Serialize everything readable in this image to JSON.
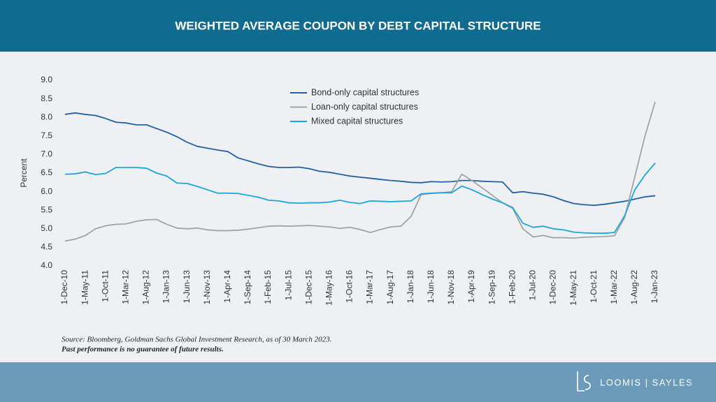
{
  "header": {
    "title": "WEIGHTED AVERAGE COUPON BY DEBT CAPITAL STRUCTURE"
  },
  "chart_data": {
    "type": "line",
    "y_label": "Percent",
    "categories": [
      "1-Dec-10",
      null,
      "1-May-11",
      null,
      "1-Oct-11",
      null,
      "1-Mar-12",
      null,
      "1-Aug-12",
      null,
      "1-Jan-13",
      null,
      "1-Jun-13",
      null,
      "1-Nov-13",
      null,
      "1-Apr-14",
      null,
      "1-Sep-14",
      null,
      "1-Feb-15",
      null,
      "1-Jul-15",
      null,
      "1-Dec-15",
      null,
      "1-May-16",
      null,
      "1-Oct-16",
      null,
      "1-Mar-17",
      null,
      "1-Aug-17",
      null,
      "1-Jan-18",
      null,
      "1-Jun-18",
      null,
      "1-Nov-18",
      null,
      "1-Apr-19",
      null,
      "1-Sep-19",
      null,
      "1-Feb-20",
      null,
      "1-Jul-20",
      null,
      "1-Dec-20",
      null,
      "1-May-21",
      null,
      "1-Oct-21",
      null,
      "1-Mar-22",
      null,
      "1-Aug-22",
      null,
      "1-Jan-23"
    ],
    "series": [
      {
        "name": "Bond-only capital structures",
        "color": "#2160a4",
        "values": [
          8.08,
          8.12,
          8.08,
          8.05,
          7.97,
          7.87,
          7.85,
          7.8,
          7.8,
          7.7,
          7.6,
          7.48,
          7.33,
          7.22,
          7.17,
          7.12,
          7.08,
          6.91,
          6.83,
          6.75,
          6.68,
          6.65,
          6.65,
          6.66,
          6.62,
          6.55,
          6.52,
          6.47,
          6.42,
          6.39,
          6.36,
          6.33,
          6.3,
          6.28,
          6.25,
          6.24,
          6.27,
          6.26,
          6.27,
          6.3,
          6.3,
          6.28,
          6.27,
          6.26,
          5.97,
          6.0,
          5.96,
          5.93,
          5.86,
          5.76,
          5.68,
          5.65,
          5.63,
          5.66,
          5.7,
          5.74,
          5.8,
          5.86,
          5.89
        ]
      },
      {
        "name": "Loan-only capital structures",
        "color": "#a3a3a3",
        "values": [
          4.67,
          4.72,
          4.82,
          5.0,
          5.08,
          5.12,
          5.13,
          5.2,
          5.24,
          5.25,
          5.12,
          5.02,
          5.0,
          5.02,
          4.97,
          4.95,
          4.95,
          4.96,
          4.99,
          5.03,
          5.07,
          5.08,
          5.07,
          5.08,
          5.09,
          5.07,
          5.05,
          5.01,
          5.04,
          4.98,
          4.9,
          4.98,
          5.05,
          5.07,
          5.33,
          5.92,
          5.95,
          5.97,
          6.0,
          6.47,
          6.3,
          6.1,
          5.9,
          5.7,
          5.55,
          5.0,
          4.78,
          4.82,
          4.76,
          4.76,
          4.75,
          4.77,
          4.78,
          4.79,
          4.81,
          5.3,
          6.4,
          7.5,
          8.42
        ]
      },
      {
        "name": "Mixed capital structures",
        "color": "#1ba6dc",
        "values": [
          6.47,
          6.48,
          6.53,
          6.46,
          6.49,
          6.65,
          6.65,
          6.65,
          6.63,
          6.5,
          6.42,
          6.23,
          6.22,
          6.14,
          6.05,
          5.96,
          5.96,
          5.95,
          5.9,
          5.85,
          5.77,
          5.75,
          5.7,
          5.69,
          5.7,
          5.7,
          5.72,
          5.77,
          5.71,
          5.68,
          5.75,
          5.74,
          5.73,
          5.74,
          5.75,
          5.94,
          5.96,
          5.97,
          5.97,
          6.15,
          6.05,
          5.92,
          5.8,
          5.7,
          5.57,
          5.15,
          5.04,
          5.07,
          5.0,
          4.97,
          4.91,
          4.89,
          4.88,
          4.88,
          4.9,
          5.35,
          6.05,
          6.45,
          6.77
        ]
      }
    ],
    "ylim": [
      4,
      9
    ],
    "yticks": [
      {
        "value": 4,
        "label": "4.0"
      },
      4.5,
      {
        "value": 5,
        "label": "5.0"
      },
      5.5,
      {
        "value": 6,
        "label": "6.0"
      },
      6.5,
      {
        "value": 7,
        "label": "7.0"
      },
      7.5,
      {
        "value": 8,
        "label": "8.0"
      },
      8.5,
      {
        "value": 9,
        "label": "9.0"
      }
    ],
    "grid": false,
    "legend": "top"
  },
  "footnote": {
    "source": "Source: Bloomberg, Goldman Sachs Global Investment Research, as of 30 March 2023.",
    "disclaimer": "Past performance is no guarantee of future results."
  },
  "footer": {
    "brand": "LOOMIS | SAYLES"
  }
}
